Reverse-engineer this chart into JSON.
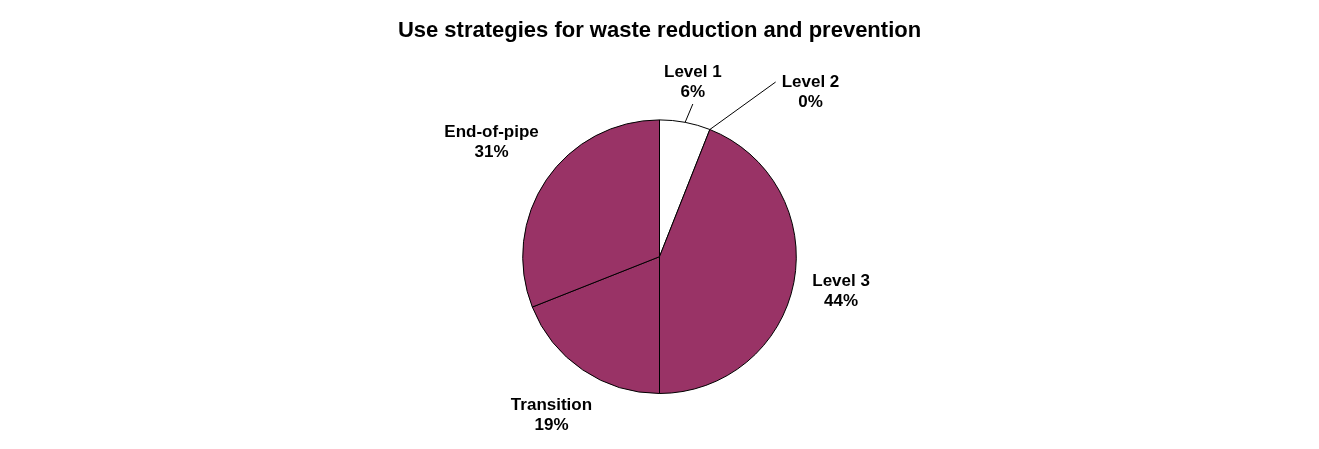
{
  "chart_data": {
    "type": "pie",
    "title": "Use strategies for waste reduction and prevention",
    "categories": [
      "Level 1",
      "Level 2",
      "Level 3",
      "Transition",
      "End-of-pipe"
    ],
    "values": [
      6,
      0,
      44,
      19,
      31
    ],
    "value_labels": [
      "6%",
      "0%",
      "44%",
      "19%",
      "31%"
    ],
    "colors": [
      "#ffffff",
      "#993366",
      "#993366",
      "#993366",
      "#993366"
    ],
    "legend": false
  }
}
